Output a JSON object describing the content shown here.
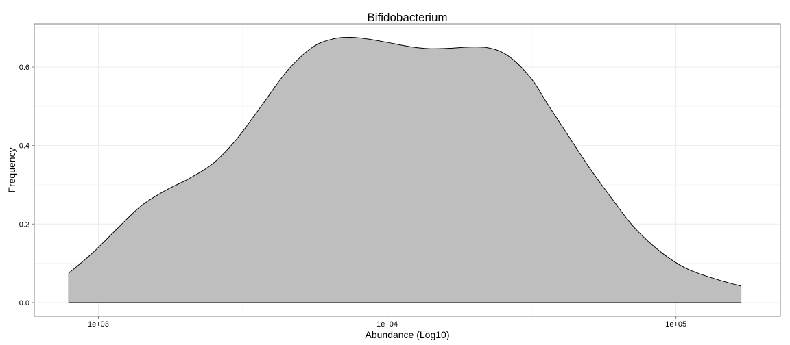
{
  "chart_data": {
    "type": "area",
    "title": "Bifidobacterium",
    "xlabel": "Abundance (Log10)",
    "ylabel": "Frequency",
    "x_scale": "log10",
    "xlim": [
      600,
      230000
    ],
    "ylim": [
      -0.035,
      0.71
    ],
    "x_ticks": [
      {
        "value": 1000,
        "label": "1e+03"
      },
      {
        "value": 10000,
        "label": "1e+04"
      },
      {
        "value": 100000,
        "label": "1e+05"
      }
    ],
    "x_minor_ticks": [
      316,
      3162,
      31623
    ],
    "y_ticks": [
      {
        "value": 0.0,
        "label": "0.0"
      },
      {
        "value": 0.2,
        "label": "0.2"
      },
      {
        "value": 0.4,
        "label": "0.4"
      },
      {
        "value": 0.6,
        "label": "0.6"
      }
    ],
    "y_minor_ticks": [
      0.1,
      0.3,
      0.5,
      0.7
    ],
    "grid": true,
    "legend": "none",
    "fill_color": "#bebebe",
    "line_color": "#000000",
    "series": [
      {
        "x": [
          790,
          950,
          1150,
          1400,
          1700,
          2050,
          2500,
          3000,
          3700,
          4500,
          5500,
          6500,
          7500,
          8500,
          10000,
          12000,
          14000,
          16500,
          19000,
          22000,
          25000,
          28000,
          32000,
          36000,
          42000,
          50000,
          60000,
          72000,
          90000,
          110000,
          140000,
          168000
        ],
        "y": [
          0.075,
          0.125,
          0.185,
          0.245,
          0.285,
          0.315,
          0.355,
          0.415,
          0.505,
          0.59,
          0.65,
          0.672,
          0.676,
          0.672,
          0.663,
          0.652,
          0.647,
          0.648,
          0.651,
          0.65,
          0.638,
          0.612,
          0.565,
          0.505,
          0.43,
          0.345,
          0.265,
          0.19,
          0.125,
          0.085,
          0.058,
          0.042
        ]
      }
    ]
  }
}
